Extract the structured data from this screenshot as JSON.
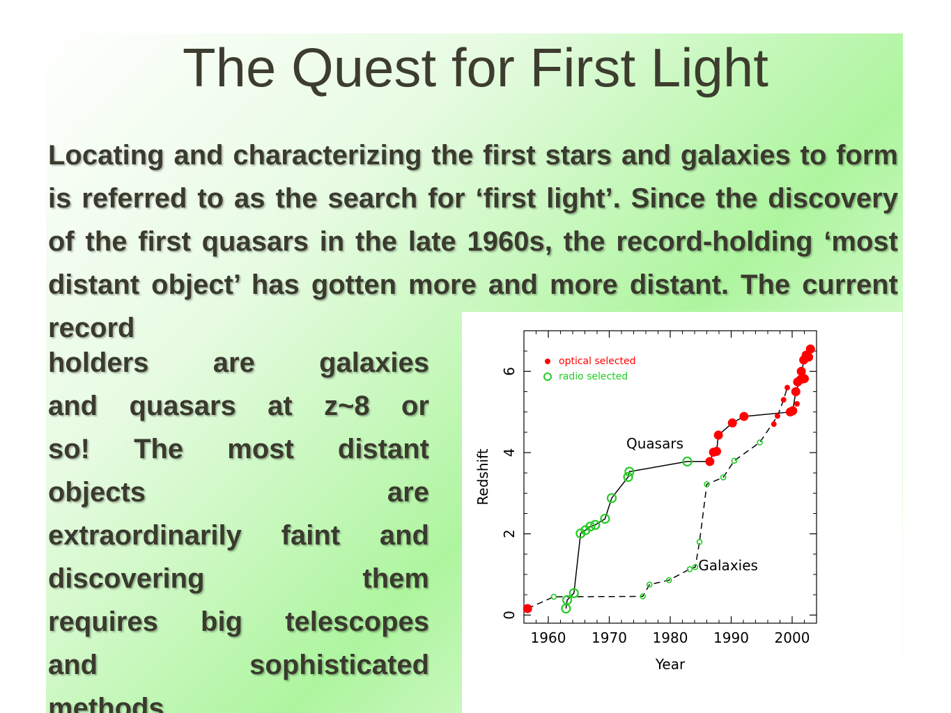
{
  "slide": {
    "title": "The Quest for First Light",
    "para_top_lines": [
      "Locating and characterizing the first stars and",
      "galaxies to form is referred to as the search for ‘first",
      "light’. Since the discovery of the first quasars in the",
      "late 1960s, the record-holding ‘most distant object’",
      "has gotten more and more distant. The current record"
    ],
    "para_left_lines": [
      "holders are galaxies",
      "and quasars at z~8 or",
      "so! The most distant",
      "objects are",
      "extraordinarily faint and",
      "discovering them",
      "requires big telescopes",
      "and sophisticated",
      "methods."
    ]
  },
  "chart_data": {
    "type": "scatter",
    "xlabel": "Year",
    "ylabel": "Redshift",
    "xlim": [
      1956,
      2004
    ],
    "ylim": [
      -0.2,
      7.0
    ],
    "xticks": [
      1960,
      1970,
      1980,
      1990,
      2000
    ],
    "yticks": [
      0,
      2,
      4,
      6
    ],
    "legend": [
      {
        "label": "optical selected",
        "color": "#ff0000",
        "marker": "filled-circle"
      },
      {
        "label": "radio selected",
        "color": "#22cc22",
        "marker": "open-circle"
      }
    ],
    "annotations": [
      {
        "text": "Quasars",
        "x": 1972.8,
        "y": 4.1
      },
      {
        "text": "Galaxies",
        "x": 1984.6,
        "y": 1.1
      }
    ],
    "series": [
      {
        "name": "Quasars",
        "line_style": "solid",
        "path": [
          [
            1962.9,
            0.16
          ],
          [
            1963.1,
            0.37
          ],
          [
            1964.2,
            0.54
          ],
          [
            1965.3,
            2.01
          ],
          [
            1966.1,
            2.09
          ],
          [
            1966.9,
            2.18
          ],
          [
            1967.7,
            2.22
          ],
          [
            1969.3,
            2.37
          ],
          [
            1970.4,
            2.88
          ],
          [
            1973.1,
            3.4
          ],
          [
            1973.3,
            3.53
          ],
          [
            1982.8,
            3.78
          ],
          [
            1986.5,
            3.78
          ],
          [
            1987.1,
            4.01
          ],
          [
            1987.6,
            4.03
          ],
          [
            1987.9,
            4.43
          ],
          [
            1990.2,
            4.73
          ],
          [
            1992.1,
            4.89
          ],
          [
            1999.7,
            5.0
          ],
          [
            2000.1,
            5.03
          ],
          [
            2000.6,
            5.5
          ],
          [
            2001.4,
            5.8
          ],
          [
            2001.9,
            6.28
          ],
          [
            2002.3,
            6.4
          ],
          [
            2003.0,
            6.55
          ]
        ],
        "optical": [
          [
            1956.6,
            0.16
          ],
          [
            1986.5,
            3.78
          ],
          [
            1987.1,
            4.01
          ],
          [
            1987.6,
            4.03
          ],
          [
            1987.9,
            4.43
          ],
          [
            1990.2,
            4.73
          ],
          [
            1992.1,
            4.89
          ],
          [
            1999.7,
            5.0
          ],
          [
            2000.1,
            5.03
          ],
          [
            2000.6,
            5.5
          ],
          [
            2000.9,
            5.74
          ],
          [
            2001.5,
            6.0
          ],
          [
            2001.9,
            6.28
          ],
          [
            2002.3,
            6.4
          ],
          [
            2003.0,
            6.55
          ],
          [
            2001.4,
            5.8
          ],
          [
            2002.0,
            5.82
          ],
          [
            2002.7,
            6.35
          ]
        ],
        "radio": [
          [
            1962.9,
            0.16
          ],
          [
            1963.1,
            0.37
          ],
          [
            1964.2,
            0.54
          ],
          [
            1965.3,
            2.01
          ],
          [
            1966.1,
            2.09
          ],
          [
            1966.9,
            2.18
          ],
          [
            1967.7,
            2.22
          ],
          [
            1969.3,
            2.37
          ],
          [
            1970.4,
            2.88
          ],
          [
            1973.1,
            3.4
          ],
          [
            1973.3,
            3.53
          ],
          [
            1982.8,
            3.78
          ]
        ]
      },
      {
        "name": "Galaxies",
        "line_style": "dashed",
        "path": [
          [
            1956.6,
            0.16
          ],
          [
            1960.9,
            0.45
          ],
          [
            1975.5,
            0.46
          ],
          [
            1976.6,
            0.75
          ],
          [
            1979.8,
            0.86
          ],
          [
            1983.2,
            1.13
          ],
          [
            1984.1,
            1.18
          ],
          [
            1984.8,
            1.8
          ],
          [
            1986.0,
            3.22
          ],
          [
            1988.7,
            3.39
          ],
          [
            1990.5,
            3.8
          ],
          [
            1994.7,
            4.25
          ],
          [
            1997.6,
            4.9
          ],
          [
            1998.6,
            5.3
          ],
          [
            1999.2,
            5.6
          ]
        ],
        "optical": [
          [
            1997.0,
            4.7
          ],
          [
            1997.6,
            4.9
          ],
          [
            1998.6,
            5.3
          ],
          [
            1999.2,
            5.6
          ],
          [
            2000.8,
            5.2
          ]
        ],
        "radio": [
          [
            1960.9,
            0.45
          ],
          [
            1975.5,
            0.46
          ],
          [
            1976.6,
            0.75
          ],
          [
            1979.8,
            0.86
          ],
          [
            1983.2,
            1.13
          ],
          [
            1984.1,
            1.18
          ],
          [
            1984.8,
            1.8
          ],
          [
            1986.0,
            3.22
          ],
          [
            1988.7,
            3.39
          ],
          [
            1990.5,
            3.8
          ],
          [
            1994.7,
            4.25
          ]
        ]
      }
    ]
  }
}
